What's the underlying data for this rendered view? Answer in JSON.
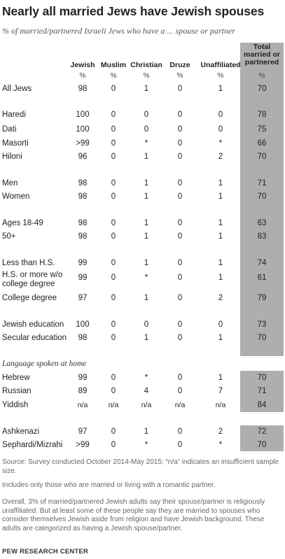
{
  "title": "Nearly all married Jews have Jewish spouses",
  "subtitle": "% of married/partnered Israeli Jews who have a ... spouse or partner",
  "chart_data": {
    "type": "table",
    "columns": [
      "Jewish",
      "Muslim",
      "Christian",
      "Druze",
      "Unaffiliated",
      "Total married or partnered"
    ],
    "units": [
      "%",
      "%",
      "%",
      "%",
      "%",
      "%"
    ],
    "rows": [
      {
        "label": "All Jews",
        "values": [
          "98",
          "0",
          "1",
          "0",
          "1",
          "70"
        ]
      },
      {
        "label": "Haredi",
        "values": [
          "100",
          "0",
          "0",
          "0",
          "0",
          "78"
        ]
      },
      {
        "label": "Dati",
        "values": [
          "100",
          "0",
          "0",
          "0",
          "0",
          "75"
        ]
      },
      {
        "label": "Masorti",
        "values": [
          ">99",
          "0",
          "*",
          "0",
          "*",
          "66"
        ]
      },
      {
        "label": "Hiloni",
        "values": [
          "96",
          "0",
          "1",
          "0",
          "2",
          "70"
        ]
      },
      {
        "label": "Men",
        "values": [
          "98",
          "0",
          "1",
          "0",
          "1",
          "71"
        ]
      },
      {
        "label": "Women",
        "values": [
          "98",
          "0",
          "1",
          "0",
          "1",
          "70"
        ]
      },
      {
        "label": "Ages 18-49",
        "values": [
          "98",
          "0",
          "1",
          "0",
          "1",
          "63"
        ]
      },
      {
        "label": "50+",
        "values": [
          "98",
          "0",
          "1",
          "0",
          "1",
          "83"
        ]
      },
      {
        "label": "Less than H.S.",
        "values": [
          "99",
          "0",
          "1",
          "0",
          "1",
          "74"
        ]
      },
      {
        "label": "H.S. or more w/o college degree",
        "values": [
          "99",
          "0",
          "*",
          "0",
          "1",
          "61"
        ]
      },
      {
        "label": "College degree",
        "values": [
          "97",
          "0",
          "1",
          "0",
          "2",
          "79"
        ]
      },
      {
        "label": "Jewish education",
        "values": [
          "100",
          "0",
          "0",
          "0",
          "0",
          "73"
        ]
      },
      {
        "label": "Secular education",
        "values": [
          "98",
          "0",
          "1",
          "0",
          "1",
          "70"
        ]
      },
      {
        "label": "Hebrew",
        "values": [
          "99",
          "0",
          "*",
          "0",
          "1",
          "70"
        ]
      },
      {
        "label": "Russian",
        "values": [
          "89",
          "0",
          "4",
          "0",
          "7",
          "71"
        ]
      },
      {
        "label": "Yiddish",
        "values": [
          "n/a",
          "n/a",
          "n/a",
          "n/a",
          "n/a",
          "84"
        ]
      },
      {
        "label": "Ashkenazi",
        "values": [
          "97",
          "0",
          "1",
          "0",
          "2",
          "72"
        ]
      },
      {
        "label": "Sephardi/Mizrahi",
        "values": [
          ">99",
          "0",
          "*",
          "0",
          "*",
          "70"
        ]
      }
    ],
    "section_label": "Language spoken at home"
  },
  "notes": {
    "source": "Source: Survey conducted October 2014-May 2015; “n/a” indicates an insufficient sample size.",
    "note1": "Includes only those who are married or living with a romantic partner.",
    "note2": "Overall, 3% of married/partnered Jewish adults say their spouse/partner is religiously unaffiliated. But at least some of these people say they are married to spouses who consider themselves Jewish aside from religion and have Jewish background. These adults are categorized as having a Jewish spouse/partner.",
    "org": "PEW RESEARCH CENTER"
  },
  "colors": {
    "shade": "#aeaeae",
    "text": "#222222"
  }
}
